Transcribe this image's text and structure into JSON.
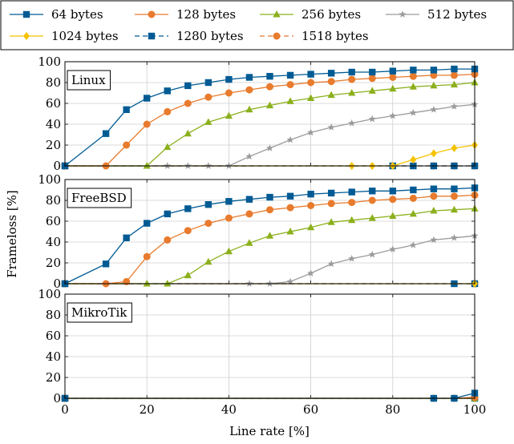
{
  "chart_data": {
    "type": "line",
    "ylabel": "Frameloss [%]",
    "xlabel": "Line rate [%]",
    "xlim": [
      0,
      100
    ],
    "ylim": [
      0,
      100
    ],
    "x_ticks": [
      0,
      20,
      40,
      60,
      80,
      100
    ],
    "y_ticks": [
      0,
      20,
      40,
      60,
      80,
      100
    ],
    "grid": true,
    "legend_position": "top, two rows",
    "series_styles": [
      {
        "name": "64 bytes",
        "color": "#005b94",
        "marker": "square",
        "dashed": false
      },
      {
        "name": "128 bytes",
        "color": "#e87b2d",
        "marker": "circle",
        "dashed": false
      },
      {
        "name": "256 bytes",
        "color": "#8bb01c",
        "marker": "triangle",
        "dashed": false
      },
      {
        "name": "512 bytes",
        "color": "#9b9b9b",
        "marker": "star",
        "dashed": false
      },
      {
        "name": "1024 bytes",
        "color": "#f5c200",
        "marker": "diamond",
        "dashed": false
      },
      {
        "name": "1280 bytes",
        "color": "#005b94",
        "marker": "square",
        "dashed": true
      },
      {
        "name": "1518 bytes",
        "color": "#e87b2d",
        "marker": "circle",
        "dashed": true
      }
    ],
    "panels": [
      {
        "label": "Linux",
        "series": [
          {
            "name": "64 bytes",
            "x": [
              0,
              10,
              15,
              20,
              25,
              30,
              35,
              40,
              45,
              50,
              55,
              60,
              65,
              70,
              75,
              80,
              85,
              90,
              95,
              100
            ],
            "y": [
              0,
              31,
              54,
              65,
              72,
              77,
              80,
              83,
              85,
              86,
              87,
              88,
              89,
              90,
              90,
              91,
              92,
              92,
              93,
              93
            ]
          },
          {
            "name": "128 bytes",
            "x": [
              0,
              10,
              15,
              20,
              25,
              30,
              35,
              40,
              45,
              50,
              55,
              60,
              65,
              70,
              75,
              80,
              85,
              90,
              95,
              100
            ],
            "y": [
              0,
              0,
              20,
              40,
              52,
              60,
              66,
              70,
              73,
              76,
              78,
              80,
              81,
              83,
              84,
              85,
              86,
              87,
              87,
              88
            ]
          },
          {
            "name": "256 bytes",
            "x": [
              0,
              20,
              25,
              30,
              35,
              40,
              45,
              50,
              55,
              60,
              65,
              70,
              75,
              80,
              85,
              90,
              95,
              100
            ],
            "y": [
              0,
              0,
              18,
              31,
              42,
              48,
              54,
              58,
              62,
              65,
              68,
              70,
              72,
              74,
              76,
              77,
              78,
              80
            ]
          },
          {
            "name": "512 bytes",
            "x": [
              0,
              25,
              30,
              35,
              40,
              45,
              50,
              55,
              60,
              65,
              70,
              75,
              80,
              85,
              90,
              95,
              100
            ],
            "y": [
              0,
              0,
              0,
              0,
              0,
              9,
              17,
              25,
              32,
              37,
              41,
              45,
              48,
              51,
              54,
              57,
              59
            ]
          },
          {
            "name": "1024 bytes",
            "x": [
              0,
              70,
              75,
              80,
              85,
              90,
              95,
              100
            ],
            "y": [
              0,
              0,
              0,
              0,
              6,
              12,
              17,
              20
            ]
          },
          {
            "name": "1280 bytes",
            "x": [
              0,
              80,
              85,
              90,
              95,
              100
            ],
            "y": [
              0,
              0,
              0,
              0,
              0,
              0
            ]
          },
          {
            "name": "1518 bytes",
            "x": [
              0,
              90,
              95,
              100
            ],
            "y": [
              0,
              0,
              0,
              0
            ]
          }
        ]
      },
      {
        "label": "FreeBSD",
        "series": [
          {
            "name": "64 bytes",
            "x": [
              0,
              10,
              15,
              20,
              25,
              30,
              35,
              40,
              45,
              50,
              55,
              60,
              65,
              70,
              75,
              80,
              85,
              90,
              95,
              100
            ],
            "y": [
              0,
              19,
              44,
              58,
              67,
              72,
              76,
              79,
              81,
              83,
              84,
              86,
              87,
              88,
              89,
              89,
              90,
              91,
              91,
              92
            ]
          },
          {
            "name": "128 bytes",
            "x": [
              0,
              10,
              15,
              20,
              25,
              30,
              35,
              40,
              45,
              50,
              55,
              60,
              65,
              70,
              75,
              80,
              85,
              90,
              95,
              100
            ],
            "y": [
              0,
              0,
              2,
              26,
              42,
              51,
              58,
              63,
              67,
              71,
              73,
              75,
              77,
              78,
              80,
              81,
              82,
              84,
              84,
              85
            ]
          },
          {
            "name": "256 bytes",
            "x": [
              0,
              20,
              25,
              30,
              35,
              40,
              45,
              50,
              55,
              60,
              65,
              70,
              75,
              80,
              85,
              90,
              95,
              100
            ],
            "y": [
              0,
              0,
              0,
              8,
              21,
              31,
              39,
              46,
              50,
              54,
              59,
              61,
              63,
              65,
              67,
              70,
              71,
              72
            ]
          },
          {
            "name": "512 bytes",
            "x": [
              0,
              45,
              50,
              55,
              60,
              65,
              70,
              75,
              80,
              85,
              90,
              95,
              100
            ],
            "y": [
              0,
              0,
              0,
              2,
              10,
              19,
              24,
              28,
              33,
              37,
              42,
              44,
              46
            ]
          },
          {
            "name": "1024 bytes",
            "x": [
              0,
              100
            ],
            "y": [
              0,
              0
            ]
          },
          {
            "name": "1280 bytes",
            "x": [
              0,
              95,
              100
            ],
            "y": [
              0,
              0,
              0
            ]
          },
          {
            "name": "1518 bytes",
            "x": [
              0,
              100
            ],
            "y": [
              0,
              0
            ]
          }
        ]
      },
      {
        "label": "MikroTik",
        "series": [
          {
            "name": "64 bytes",
            "x": [
              0,
              90,
              95,
              100
            ],
            "y": [
              0,
              0,
              0,
              5
            ]
          },
          {
            "name": "128 bytes",
            "x": [
              0,
              90,
              95,
              100
            ],
            "y": [
              0,
              0,
              0,
              1
            ]
          },
          {
            "name": "256 bytes",
            "x": [
              0,
              100
            ],
            "y": [
              0,
              0
            ]
          },
          {
            "name": "512 bytes",
            "x": [
              0,
              100
            ],
            "y": [
              0,
              0
            ]
          },
          {
            "name": "1024 bytes",
            "x": [
              0,
              100
            ],
            "y": [
              0,
              0
            ]
          },
          {
            "name": "1280 bytes",
            "x": [
              0,
              100
            ],
            "y": [
              0,
              0
            ]
          },
          {
            "name": "1518 bytes",
            "x": [
              0,
              100
            ],
            "y": [
              0,
              0
            ]
          }
        ]
      }
    ]
  }
}
